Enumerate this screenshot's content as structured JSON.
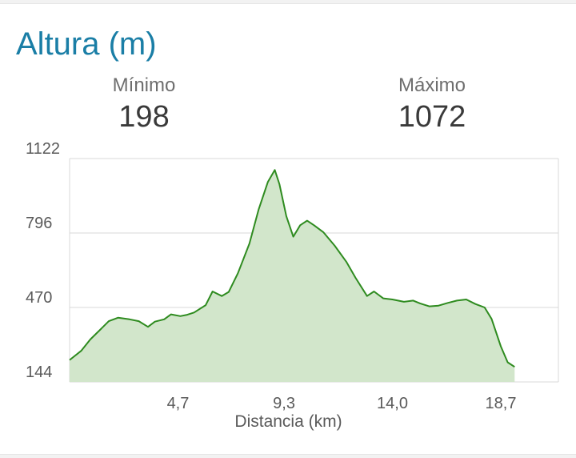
{
  "header": {
    "title": "Altura (m)"
  },
  "stats": {
    "min_label": "Mínimo",
    "min_value": "198",
    "max_label": "Máximo",
    "max_value": "1072"
  },
  "colors": {
    "title": "#1a7ea6",
    "line": "#2e8b1f",
    "fill": "#d2e6cb",
    "grid": "#d9d9d9"
  },
  "chart_data": {
    "type": "area",
    "title": "Altura (m)",
    "xlabel": "Distancia (km)",
    "ylabel": "",
    "xlim": [
      0,
      18.7
    ],
    "ylim": [
      144,
      1122
    ],
    "y_ticks": [
      144,
      470,
      796,
      1122
    ],
    "y_tick_labels": [
      "144",
      "470",
      "796",
      "1122"
    ],
    "x_ticks": [
      4.7,
      9.3,
      14.0,
      18.7
    ],
    "x_tick_labels": [
      "4,7",
      "9,3",
      "14,0",
      "18,7"
    ],
    "grid": true,
    "series": [
      {
        "values": [
          [
            0.0,
            240
          ],
          [
            0.5,
            280
          ],
          [
            0.9,
            330
          ],
          [
            1.3,
            370
          ],
          [
            1.7,
            410
          ],
          [
            2.1,
            425
          ],
          [
            2.6,
            418
          ],
          [
            3.0,
            410
          ],
          [
            3.4,
            385
          ],
          [
            3.7,
            408
          ],
          [
            4.1,
            418
          ],
          [
            4.4,
            440
          ],
          [
            4.8,
            432
          ],
          [
            5.1,
            438
          ],
          [
            5.4,
            448
          ],
          [
            5.9,
            480
          ],
          [
            6.2,
            540
          ],
          [
            6.6,
            520
          ],
          [
            6.9,
            538
          ],
          [
            7.3,
            620
          ],
          [
            7.8,
            750
          ],
          [
            8.2,
            900
          ],
          [
            8.6,
            1020
          ],
          [
            8.9,
            1072
          ],
          [
            9.1,
            1010
          ],
          [
            9.4,
            870
          ],
          [
            9.7,
            780
          ],
          [
            10.0,
            830
          ],
          [
            10.3,
            850
          ],
          [
            10.6,
            830
          ],
          [
            11.0,
            800
          ],
          [
            11.5,
            740
          ],
          [
            12.0,
            670
          ],
          [
            12.4,
            600
          ],
          [
            12.9,
            520
          ],
          [
            13.2,
            540
          ],
          [
            13.6,
            510
          ],
          [
            14.0,
            505
          ],
          [
            14.5,
            495
          ],
          [
            14.9,
            500
          ],
          [
            15.2,
            488
          ],
          [
            15.6,
            475
          ],
          [
            16.0,
            478
          ],
          [
            16.4,
            490
          ],
          [
            16.8,
            500
          ],
          [
            17.2,
            505
          ],
          [
            17.6,
            485
          ],
          [
            18.0,
            470
          ],
          [
            18.3,
            420
          ],
          [
            18.7,
            300
          ],
          [
            19.0,
            230
          ],
          [
            19.3,
            210
          ]
        ]
      }
    ]
  }
}
